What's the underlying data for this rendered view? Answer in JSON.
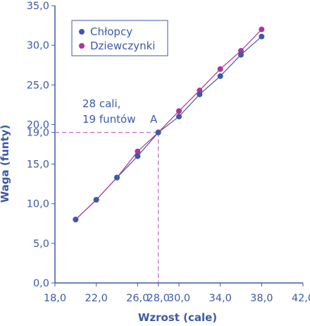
{
  "chart_data": {
    "type": "line",
    "xlabel": "Wzrost (cale)",
    "ylabel": "Waga (funty)",
    "xlim": [
      18,
      42
    ],
    "ylim": [
      0,
      35
    ],
    "x_ticks": [
      "18,0",
      "22,0",
      "26,0",
      "28,0",
      "30,0",
      "34,0",
      "38,0",
      "42,0"
    ],
    "y_ticks": [
      "0,0",
      "5,0",
      "10,0",
      "15,0",
      "19,0",
      "20,0",
      "25,0",
      "30,0",
      "35,0"
    ],
    "grid": false,
    "legend_position": "top-left",
    "series": [
      {
        "name": "Chłopcy",
        "color": "#3d5aa6",
        "x": [
          20,
          22,
          24,
          26,
          28,
          30,
          32,
          34,
          36,
          38
        ],
        "y": [
          8.0,
          10.5,
          13.3,
          16.0,
          19.0,
          21.0,
          23.8,
          26.1,
          28.8,
          31.1
        ]
      },
      {
        "name": "Dziewczynki",
        "color": "#b0339b",
        "x": [
          20,
          22,
          24,
          26,
          28,
          30,
          32,
          34,
          36,
          38
        ],
        "y": [
          8.0,
          10.5,
          13.3,
          16.6,
          19.0,
          21.7,
          24.3,
          27.0,
          29.3,
          32.0
        ]
      }
    ],
    "annotation": {
      "line1": "28 cali,",
      "line2": "19 funtów",
      "point_label": "A",
      "x": 28,
      "y": 19
    }
  }
}
